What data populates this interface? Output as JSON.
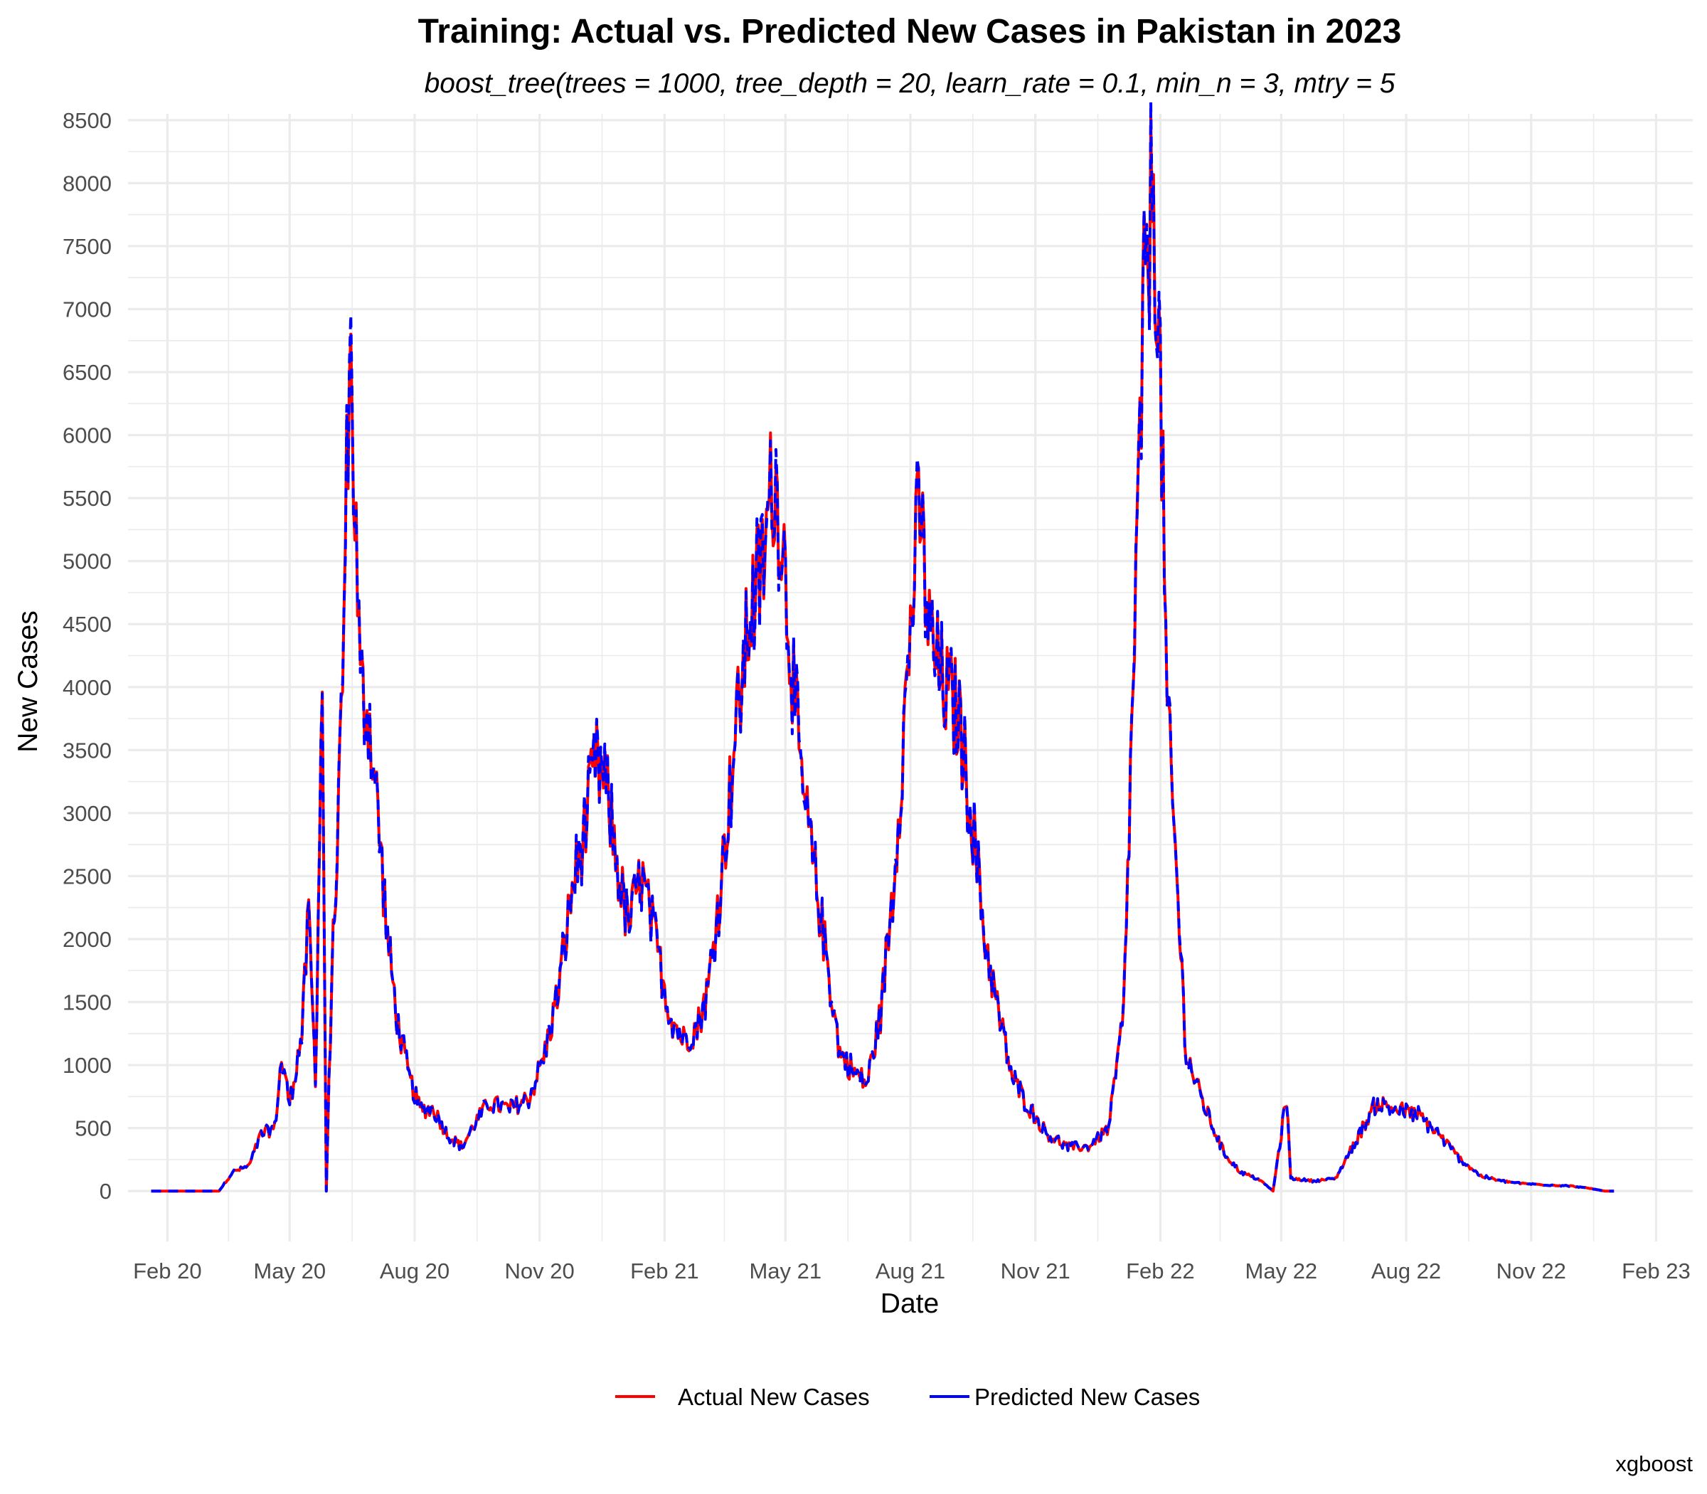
{
  "chart_data": {
    "type": "line",
    "title": "Training: Actual vs. Predicted New Cases in Pakistan in 2023",
    "subtitle": "boost_tree(trees = 1000, tree_depth = 20, learn_rate = 0.1, min_n = 3, mtry = 5",
    "xlabel": "Date",
    "ylabel": "New Cases",
    "caption": "xgboost",
    "xlim": [
      "2020-01-03",
      "2023-02-28"
    ],
    "ylim": [
      -400,
      8550
    ],
    "x_ticks": [
      {
        "date": "2020-02-01",
        "label": "Feb 20"
      },
      {
        "date": "2020-05-01",
        "label": "May 20"
      },
      {
        "date": "2020-08-01",
        "label": "Aug 20"
      },
      {
        "date": "2020-11-01",
        "label": "Nov 20"
      },
      {
        "date": "2021-02-01",
        "label": "Feb 21"
      },
      {
        "date": "2021-05-01",
        "label": "May 21"
      },
      {
        "date": "2021-08-01",
        "label": "Aug 21"
      },
      {
        "date": "2021-11-01",
        "label": "Nov 21"
      },
      {
        "date": "2022-02-01",
        "label": "Feb 22"
      },
      {
        "date": "2022-05-01",
        "label": "May 22"
      },
      {
        "date": "2022-08-01",
        "label": "Aug 22"
      },
      {
        "date": "2022-11-01",
        "label": "Nov 22"
      },
      {
        "date": "2023-02-01",
        "label": "Feb 23"
      }
    ],
    "y_ticks": [
      0,
      500,
      1000,
      1500,
      2000,
      2500,
      3000,
      3500,
      4000,
      4500,
      5000,
      5500,
      6000,
      6500,
      7000,
      7500,
      8000,
      8500
    ],
    "grid": true,
    "legend_position": "bottom",
    "series_style": [
      {
        "name": "Actual New Cases",
        "color": "#ff0000",
        "dash": "solid"
      },
      {
        "name": "Predicted New Cases",
        "color": "#0000ff",
        "dash": "dashed"
      }
    ],
    "approx_points": [
      [
        "2020-01-20",
        0
      ],
      [
        "2020-03-10",
        0
      ],
      [
        "2020-03-20",
        150
      ],
      [
        "2020-04-01",
        200
      ],
      [
        "2020-04-10",
        450
      ],
      [
        "2020-04-20",
        500
      ],
      [
        "2020-04-25",
        1050
      ],
      [
        "2020-05-01",
        700
      ],
      [
        "2020-05-10",
        1250
      ],
      [
        "2020-05-15",
        2200
      ],
      [
        "2020-05-20",
        900
      ],
      [
        "2020-05-25",
        4100
      ],
      [
        "2020-05-28",
        0
      ],
      [
        "2020-06-01",
        1700
      ],
      [
        "2020-06-05",
        2700
      ],
      [
        "2020-06-10",
        4500
      ],
      [
        "2020-06-14",
        6800
      ],
      [
        "2020-06-18",
        5500
      ],
      [
        "2020-06-22",
        4000
      ],
      [
        "2020-06-28",
        3800
      ],
      [
        "2020-07-05",
        3000
      ],
      [
        "2020-07-12",
        2000
      ],
      [
        "2020-07-20",
        1300
      ],
      [
        "2020-07-28",
        900
      ],
      [
        "2020-08-05",
        650
      ],
      [
        "2020-08-15",
        650
      ],
      [
        "2020-08-25",
        450
      ],
      [
        "2020-09-05",
        350
      ],
      [
        "2020-09-15",
        550
      ],
      [
        "2020-09-25",
        700
      ],
      [
        "2020-10-10",
        650
      ],
      [
        "2020-10-25",
        750
      ],
      [
        "2020-11-05",
        1100
      ],
      [
        "2020-11-15",
        1600
      ],
      [
        "2020-11-25",
        2400
      ],
      [
        "2020-12-05",
        2900
      ],
      [
        "2020-12-12",
        3400
      ],
      [
        "2020-12-20",
        3200
      ],
      [
        "2020-12-28",
        2600
      ],
      [
        "2021-01-05",
        2100
      ],
      [
        "2021-01-15",
        2500
      ],
      [
        "2021-01-25",
        2000
      ],
      [
        "2021-02-05",
        1400
      ],
      [
        "2021-02-15",
        1200
      ],
      [
        "2021-02-25",
        1300
      ],
      [
        "2021-03-05",
        1600
      ],
      [
        "2021-03-15",
        2500
      ],
      [
        "2021-03-25",
        3600
      ],
      [
        "2021-04-05",
        4600
      ],
      [
        "2021-04-15",
        5000
      ],
      [
        "2021-04-22",
        5700
      ],
      [
        "2021-04-28",
        5300
      ],
      [
        "2021-05-05",
        4300
      ],
      [
        "2021-05-12",
        3300
      ],
      [
        "2021-05-20",
        2700
      ],
      [
        "2021-06-01",
        1800
      ],
      [
        "2021-06-10",
        1100
      ],
      [
        "2021-06-20",
        950
      ],
      [
        "2021-06-30",
        850
      ],
      [
        "2021-07-10",
        1400
      ],
      [
        "2021-07-20",
        2500
      ],
      [
        "2021-07-28",
        3800
      ],
      [
        "2021-08-03",
        4800
      ],
      [
        "2021-08-08",
        5400
      ],
      [
        "2021-08-15",
        4400
      ],
      [
        "2021-08-25",
        4000
      ],
      [
        "2021-09-05",
        3800
      ],
      [
        "2021-09-15",
        3000
      ],
      [
        "2021-09-25",
        2000
      ],
      [
        "2021-10-05",
        1400
      ],
      [
        "2021-10-15",
        900
      ],
      [
        "2021-10-28",
        650
      ],
      [
        "2021-11-10",
        450
      ],
      [
        "2021-11-25",
        350
      ],
      [
        "2021-12-10",
        350
      ],
      [
        "2021-12-25",
        500
      ],
      [
        "2022-01-05",
        1400
      ],
      [
        "2022-01-12",
        4000
      ],
      [
        "2022-01-20",
        7000
      ],
      [
        "2022-01-27",
        8100
      ],
      [
        "2022-02-02",
        6000
      ],
      [
        "2022-02-06",
        3800
      ],
      [
        "2022-02-12",
        2700
      ],
      [
        "2022-02-20",
        1100
      ],
      [
        "2022-03-01",
        800
      ],
      [
        "2022-03-10",
        550
      ],
      [
        "2022-03-20",
        300
      ],
      [
        "2022-04-01",
        150
      ],
      [
        "2022-04-15",
        90
      ],
      [
        "2022-04-25",
        0
      ],
      [
        "2022-05-05",
        750
      ],
      [
        "2022-05-08",
        100
      ],
      [
        "2022-05-25",
        80
      ],
      [
        "2022-06-10",
        100
      ],
      [
        "2022-06-25",
        400
      ],
      [
        "2022-07-10",
        700
      ],
      [
        "2022-07-25",
        650
      ],
      [
        "2022-08-10",
        600
      ],
      [
        "2022-08-25",
        450
      ],
      [
        "2022-09-10",
        250
      ],
      [
        "2022-09-25",
        120
      ],
      [
        "2022-10-10",
        80
      ],
      [
        "2022-10-25",
        60
      ],
      [
        "2022-11-10",
        50
      ],
      [
        "2022-11-30",
        40
      ],
      [
        "2022-12-15",
        20
      ],
      [
        "2022-12-25",
        0
      ],
      [
        "2023-01-01",
        0
      ]
    ]
  }
}
